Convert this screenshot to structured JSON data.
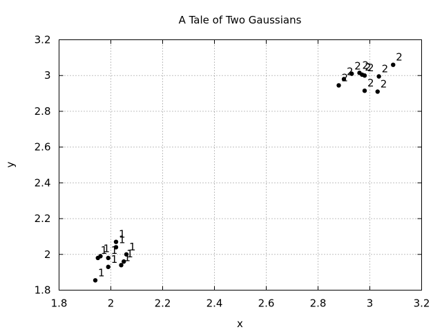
{
  "chart_data": {
    "type": "scatter",
    "title": "A Tale of Two Gaussians",
    "xlabel": "x",
    "ylabel": "y",
    "xlim": [
      1.8,
      3.2
    ],
    "ylim": [
      1.8,
      3.2
    ],
    "xticks": [
      1.8,
      2.0,
      2.2,
      2.4,
      2.6,
      2.8,
      3.0,
      3.2
    ],
    "xtick_labels": [
      "1.8",
      "2",
      "2.2",
      "2.4",
      "2.6",
      "2.8",
      "3",
      "3.2"
    ],
    "yticks": [
      1.8,
      2.0,
      2.2,
      2.4,
      2.6,
      2.8,
      3.0,
      3.2
    ],
    "ytick_labels": [
      "1.8",
      "2",
      "2.2",
      "2.4",
      "2.6",
      "2.8",
      "3",
      "3.2"
    ],
    "grid": true,
    "marker_color": "#000000",
    "points": [
      {
        "x": 1.94,
        "y": 1.855,
        "label": "1"
      },
      {
        "x": 1.95,
        "y": 1.98,
        "label": "1"
      },
      {
        "x": 1.96,
        "y": 1.99,
        "label": "1"
      },
      {
        "x": 1.99,
        "y": 1.93,
        "label": "1"
      },
      {
        "x": 1.99,
        "y": 1.98,
        "label": "1"
      },
      {
        "x": 2.02,
        "y": 2.04,
        "label": "1"
      },
      {
        "x": 2.02,
        "y": 2.07,
        "label": "1"
      },
      {
        "x": 2.04,
        "y": 1.94,
        "label": "1"
      },
      {
        "x": 2.05,
        "y": 1.96,
        "label": "1"
      },
      {
        "x": 2.06,
        "y": 2.0,
        "label": "1"
      },
      {
        "x": 2.88,
        "y": 2.945,
        "label": "2"
      },
      {
        "x": 2.9,
        "y": 2.98,
        "label": "2"
      },
      {
        "x": 2.93,
        "y": 3.01,
        "label": "2"
      },
      {
        "x": 2.96,
        "y": 3.015,
        "label": "2"
      },
      {
        "x": 2.97,
        "y": 3.005,
        "label": "2"
      },
      {
        "x": 2.98,
        "y": 3.0,
        "label": "2"
      },
      {
        "x": 2.98,
        "y": 2.915,
        "label": "2"
      },
      {
        "x": 3.03,
        "y": 2.91,
        "label": "2"
      },
      {
        "x": 3.035,
        "y": 2.995,
        "label": "2"
      },
      {
        "x": 3.09,
        "y": 3.06,
        "label": "2"
      }
    ]
  }
}
